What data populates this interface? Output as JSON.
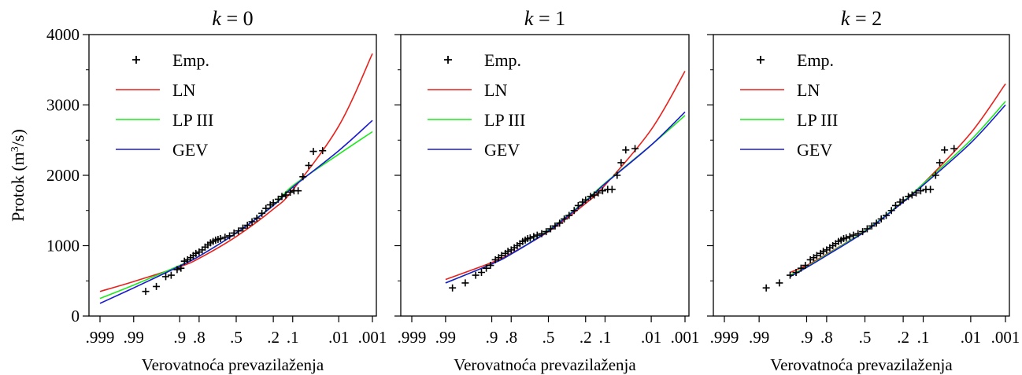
{
  "ylabel_prefix": "Protok (m",
  "ylabel_sup": "3",
  "ylabel_suffix": "/s)",
  "yticks": [
    "0",
    "1000",
    "2000",
    "3000",
    "4000"
  ],
  "xticks": [
    {
      "label": ".999",
      "p": 0.999
    },
    {
      "label": ".99",
      "p": 0.99
    },
    {
      "label": ".9",
      "p": 0.9
    },
    {
      "label": ".8",
      "p": 0.8
    },
    {
      "label": ".5",
      "p": 0.5
    },
    {
      "label": ".2",
      "p": 0.2
    },
    {
      "label": ".1",
      "p": 0.1
    },
    {
      "label": ".01",
      "p": 0.01
    },
    {
      "label": ".001",
      "p": 0.001
    }
  ],
  "colors": {
    "LN": "#e8211c",
    "LPIII": "#1ee81e",
    "GEV": "#1a1ad0",
    "Emp": "#000000"
  },
  "chart_data": [
    {
      "type": "line",
      "title_var": "k",
      "title_rest": " = 0",
      "xlabel": "Verovatnoća prevazilaženja",
      "ylim": [
        0,
        4000
      ],
      "legend": [
        "Emp.",
        "LN",
        "LP III",
        "GEV"
      ],
      "legend_placement": "top-left",
      "empirical": [
        [
          0.98,
          350
        ],
        [
          0.965,
          420
        ],
        [
          0.945,
          560
        ],
        [
          0.93,
          580
        ],
        [
          0.91,
          660
        ],
        [
          0.895,
          680
        ],
        [
          0.88,
          780
        ],
        [
          0.865,
          800
        ],
        [
          0.85,
          830
        ],
        [
          0.835,
          860
        ],
        [
          0.82,
          890
        ],
        [
          0.8,
          910
        ],
        [
          0.78,
          940
        ],
        [
          0.76,
          980
        ],
        [
          0.74,
          1010
        ],
        [
          0.72,
          1040
        ],
        [
          0.7,
          1060
        ],
        [
          0.68,
          1080
        ],
        [
          0.66,
          1090
        ],
        [
          0.64,
          1100
        ],
        [
          0.6,
          1120
        ],
        [
          0.56,
          1140
        ],
        [
          0.52,
          1180
        ],
        [
          0.48,
          1210
        ],
        [
          0.44,
          1250
        ],
        [
          0.4,
          1290
        ],
        [
          0.36,
          1340
        ],
        [
          0.32,
          1390
        ],
        [
          0.28,
          1460
        ],
        [
          0.25,
          1530
        ],
        [
          0.22,
          1580
        ],
        [
          0.2,
          1610
        ],
        [
          0.17,
          1660
        ],
        [
          0.15,
          1700
        ],
        [
          0.13,
          1720
        ],
        [
          0.11,
          1760
        ],
        [
          0.095,
          1780
        ],
        [
          0.08,
          1780
        ],
        [
          0.065,
          1980
        ],
        [
          0.05,
          2140
        ],
        [
          0.04,
          2340
        ],
        [
          0.025,
          2350
        ]
      ],
      "series": [
        {
          "name": "LN",
          "color": "#e8211c",
          "points": [
            [
              0.999,
              350
            ],
            [
              0.99,
              490
            ],
            [
              0.9,
              700
            ],
            [
              0.8,
              820
            ],
            [
              0.5,
              1130
            ],
            [
              0.2,
              1520
            ],
            [
              0.1,
              1790
            ],
            [
              0.01,
              2700
            ],
            [
              0.001,
              3730
            ]
          ]
        },
        {
          "name": "LP III",
          "color": "#1ee81e",
          "points": [
            [
              0.999,
              250
            ],
            [
              0.99,
              440
            ],
            [
              0.9,
              720
            ],
            [
              0.8,
              850
            ],
            [
              0.5,
              1180
            ],
            [
              0.2,
              1580
            ],
            [
              0.1,
              1850
            ],
            [
              0.01,
              2300
            ],
            [
              0.001,
              2620
            ]
          ]
        },
        {
          "name": "GEV",
          "color": "#1a1ad0",
          "points": [
            [
              0.999,
              180
            ],
            [
              0.99,
              400
            ],
            [
              0.9,
              710
            ],
            [
              0.8,
              850
            ],
            [
              0.5,
              1180
            ],
            [
              0.2,
              1570
            ],
            [
              0.1,
              1830
            ],
            [
              0.01,
              2350
            ],
            [
              0.001,
              2780
            ]
          ]
        }
      ]
    },
    {
      "type": "line",
      "title_var": "k",
      "title_rest": " = 1",
      "xlabel": "Verovatnoća prevazilaženja",
      "ylim": [
        0,
        4000
      ],
      "legend": [
        "Emp.",
        "LN",
        "LP III",
        "GEV"
      ],
      "legend_placement": "top-left",
      "empirical": [
        [
          0.985,
          400
        ],
        [
          0.97,
          470
        ],
        [
          0.95,
          580
        ],
        [
          0.935,
          620
        ],
        [
          0.92,
          680
        ],
        [
          0.905,
          720
        ],
        [
          0.885,
          800
        ],
        [
          0.87,
          830
        ],
        [
          0.855,
          860
        ],
        [
          0.835,
          890
        ],
        [
          0.82,
          920
        ],
        [
          0.8,
          940
        ],
        [
          0.78,
          970
        ],
        [
          0.76,
          1000
        ],
        [
          0.74,
          1030
        ],
        [
          0.72,
          1060
        ],
        [
          0.7,
          1080
        ],
        [
          0.68,
          1100
        ],
        [
          0.66,
          1110
        ],
        [
          0.63,
          1130
        ],
        [
          0.6,
          1150
        ],
        [
          0.56,
          1170
        ],
        [
          0.52,
          1200
        ],
        [
          0.48,
          1240
        ],
        [
          0.44,
          1280
        ],
        [
          0.4,
          1320
        ],
        [
          0.36,
          1380
        ],
        [
          0.32,
          1430
        ],
        [
          0.28,
          1500
        ],
        [
          0.25,
          1570
        ],
        [
          0.22,
          1620
        ],
        [
          0.2,
          1650
        ],
        [
          0.17,
          1700
        ],
        [
          0.15,
          1720
        ],
        [
          0.13,
          1750
        ],
        [
          0.11,
          1780
        ],
        [
          0.09,
          1800
        ],
        [
          0.075,
          1800
        ],
        [
          0.06,
          2000
        ],
        [
          0.05,
          2180
        ],
        [
          0.04,
          2360
        ],
        [
          0.025,
          2380
        ]
      ],
      "series": [
        {
          "name": "LN",
          "color": "#e8211c",
          "points": [
            [
              0.99,
              520
            ],
            [
              0.9,
              760
            ],
            [
              0.8,
              890
            ],
            [
              0.5,
              1200
            ],
            [
              0.2,
              1600
            ],
            [
              0.1,
              1860
            ],
            [
              0.01,
              2650
            ],
            [
              0.001,
              3480
            ]
          ]
        },
        {
          "name": "LP III",
          "color": "#1ee81e",
          "points": [
            [
              0.99,
              470
            ],
            [
              0.9,
              740
            ],
            [
              0.8,
              880
            ],
            [
              0.5,
              1220
            ],
            [
              0.2,
              1640
            ],
            [
              0.1,
              1890
            ],
            [
              0.01,
              2430
            ],
            [
              0.001,
              2850
            ]
          ]
        },
        {
          "name": "GEV",
          "color": "#1a1ad0",
          "points": [
            [
              0.99,
              470
            ],
            [
              0.9,
              740
            ],
            [
              0.8,
              880
            ],
            [
              0.5,
              1210
            ],
            [
              0.2,
              1630
            ],
            [
              0.1,
              1880
            ],
            [
              0.01,
              2430
            ],
            [
              0.001,
              2900
            ]
          ]
        }
      ]
    },
    {
      "type": "line",
      "title_var": "k",
      "title_rest": " = 2",
      "xlabel": "Verovatnoća prevazilaženja",
      "ylim": [
        0,
        4000
      ],
      "legend": [
        "Emp.",
        "LN",
        "LP III",
        "GEV"
      ],
      "legend_placement": "top-left",
      "empirical": [
        [
          0.985,
          400
        ],
        [
          0.97,
          470
        ],
        [
          0.95,
          580
        ],
        [
          0.935,
          620
        ],
        [
          0.92,
          680
        ],
        [
          0.905,
          720
        ],
        [
          0.885,
          800
        ],
        [
          0.87,
          830
        ],
        [
          0.855,
          860
        ],
        [
          0.835,
          890
        ],
        [
          0.82,
          920
        ],
        [
          0.8,
          940
        ],
        [
          0.78,
          970
        ],
        [
          0.76,
          1000
        ],
        [
          0.74,
          1030
        ],
        [
          0.72,
          1060
        ],
        [
          0.7,
          1080
        ],
        [
          0.68,
          1100
        ],
        [
          0.66,
          1110
        ],
        [
          0.63,
          1130
        ],
        [
          0.6,
          1150
        ],
        [
          0.56,
          1170
        ],
        [
          0.52,
          1200
        ],
        [
          0.48,
          1240
        ],
        [
          0.44,
          1280
        ],
        [
          0.4,
          1320
        ],
        [
          0.36,
          1380
        ],
        [
          0.32,
          1430
        ],
        [
          0.28,
          1500
        ],
        [
          0.25,
          1570
        ],
        [
          0.22,
          1620
        ],
        [
          0.2,
          1650
        ],
        [
          0.17,
          1700
        ],
        [
          0.15,
          1720
        ],
        [
          0.13,
          1750
        ],
        [
          0.11,
          1780
        ],
        [
          0.09,
          1800
        ],
        [
          0.075,
          1800
        ],
        [
          0.06,
          2000
        ],
        [
          0.05,
          2180
        ],
        [
          0.04,
          2360
        ],
        [
          0.025,
          2380
        ]
      ],
      "series": [
        {
          "name": "LN",
          "color": "#e8211c",
          "points": [
            [
              0.95,
              620
            ],
            [
              0.9,
              720
            ],
            [
              0.8,
              880
            ],
            [
              0.5,
              1210
            ],
            [
              0.2,
              1620
            ],
            [
              0.1,
              1880
            ],
            [
              0.01,
              2600
            ],
            [
              0.001,
              3300
            ]
          ]
        },
        {
          "name": "LP III",
          "color": "#1ee81e",
          "points": [
            [
              0.95,
              580
            ],
            [
              0.9,
              700
            ],
            [
              0.8,
              870
            ],
            [
              0.5,
              1210
            ],
            [
              0.2,
              1630
            ],
            [
              0.1,
              1880
            ],
            [
              0.01,
              2500
            ],
            [
              0.001,
              3050
            ]
          ]
        },
        {
          "name": "GEV",
          "color": "#1a1ad0",
          "points": [
            [
              0.95,
              560
            ],
            [
              0.9,
              690
            ],
            [
              0.8,
              860
            ],
            [
              0.5,
              1200
            ],
            [
              0.2,
              1620
            ],
            [
              0.1,
              1860
            ],
            [
              0.01,
              2460
            ],
            [
              0.001,
              3000
            ]
          ]
        }
      ]
    }
  ]
}
